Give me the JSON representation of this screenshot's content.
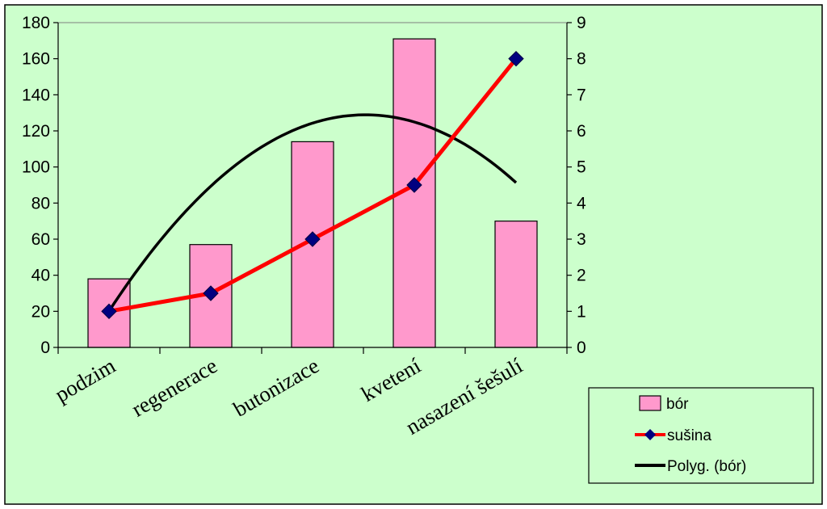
{
  "chart_data": {
    "type": "bar",
    "categories": [
      "podzim",
      "regenerace",
      "butonizace",
      "kvetení",
      "nasazení šešulí"
    ],
    "series": [
      {
        "name": "bór",
        "type": "bar",
        "axis": "left",
        "values": [
          38,
          57,
          114,
          171,
          70
        ],
        "color": "#ff99cc"
      },
      {
        "name": "sušina",
        "type": "line",
        "axis": "right",
        "values": [
          1,
          1.5,
          3,
          4.5,
          8
        ],
        "color": "#ff0000",
        "marker_color": "#000080"
      },
      {
        "name": "Polyg. (bór)",
        "type": "trendline",
        "axis": "left",
        "trend": "polynomial-2",
        "values": [
          20.2,
          88,
          122.8,
          124.6,
          93.4
        ],
        "color": "#000000"
      }
    ],
    "ylim": [
      0,
      180
    ],
    "y_ticks": [
      0,
      20,
      40,
      60,
      80,
      100,
      120,
      140,
      160,
      180
    ],
    "y2lim": [
      0,
      9
    ],
    "y2_ticks": [
      0,
      1,
      2,
      3,
      4,
      5,
      6,
      7,
      8,
      9
    ],
    "title": "",
    "xlabel": "",
    "ylabel": "",
    "y2label": "",
    "grid": false,
    "legend": "bottom-right",
    "colors": {
      "background": "#ccffcc",
      "bar_fill": "#ff99cc",
      "line": "#ff0000",
      "marker": "#000080",
      "trend": "#000000"
    }
  }
}
